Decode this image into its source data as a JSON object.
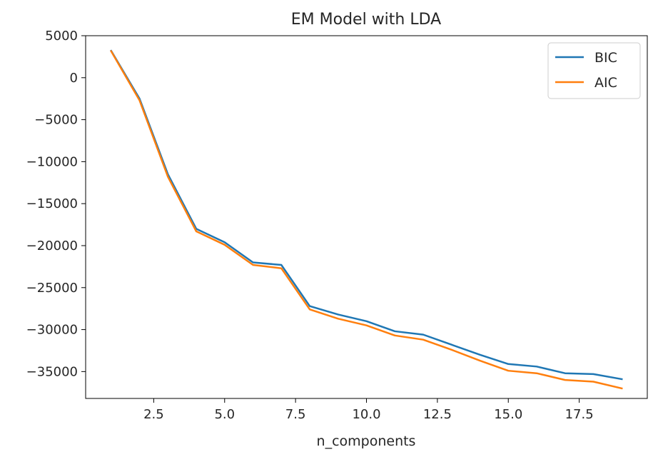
{
  "chart_data": {
    "type": "line",
    "title": "EM Model with LDA",
    "xlabel": "n_components",
    "ylabel": "",
    "xlim": [
      0.1,
      19.9
    ],
    "ylim": [
      -38200,
      5000
    ],
    "x_ticks": [
      2.5,
      5.0,
      7.5,
      10.0,
      12.5,
      15.0,
      17.5
    ],
    "x_tick_labels": [
      "2.5",
      "5.0",
      "7.5",
      "10.0",
      "12.5",
      "15.0",
      "17.5"
    ],
    "y_ticks": [
      5000,
      0,
      -5000,
      -10000,
      -15000,
      -20000,
      -25000,
      -30000,
      -35000
    ],
    "y_tick_labels": [
      "5000",
      "0",
      "−5000",
      "−10000",
      "−15000",
      "−20000",
      "−25000",
      "−30000",
      "−35000"
    ],
    "grid": false,
    "legend_position": "top-right",
    "x": [
      1,
      2,
      3,
      4,
      5,
      6,
      7,
      8,
      9,
      10,
      11,
      12,
      13,
      14,
      15,
      16,
      17,
      18,
      19
    ],
    "series": [
      {
        "name": "BIC",
        "color": "#1f77b4",
        "values": [
          3200,
          -2500,
          -11500,
          -18000,
          -19600,
          -22000,
          -22300,
          -27200,
          -28200,
          -29000,
          -30200,
          -30600,
          -31800,
          -33000,
          -34100,
          -34400,
          -35200,
          -35300,
          -35900
        ]
      },
      {
        "name": "AIC",
        "color": "#ff7f0e",
        "values": [
          3150,
          -2700,
          -11800,
          -18300,
          -19900,
          -22300,
          -22700,
          -27600,
          -28700,
          -29500,
          -30700,
          -31200,
          -32400,
          -33700,
          -34900,
          -35200,
          -36000,
          -36200,
          -37000
        ]
      }
    ]
  }
}
